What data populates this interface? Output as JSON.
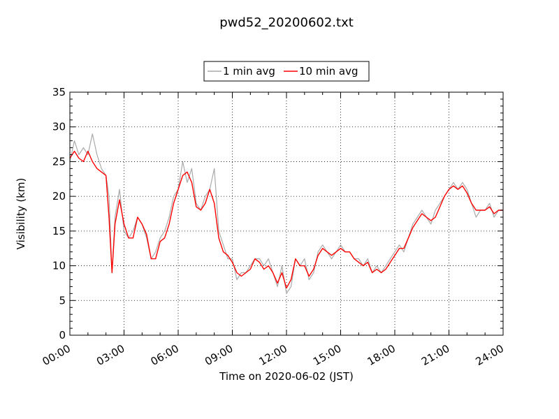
{
  "chart_data": {
    "type": "line",
    "title": "pwd52_20200602.txt",
    "xlabel": "Time on 2020-06-02 (JST)",
    "ylabel": "Visibility (km)",
    "xlim": [
      "00:00",
      "24:00"
    ],
    "ylim": [
      0,
      35
    ],
    "x_ticks": [
      "00:00",
      "03:00",
      "06:00",
      "09:00",
      "12:00",
      "15:00",
      "18:00",
      "21:00",
      "24:00"
    ],
    "y_ticks": [
      "0",
      "5",
      "10",
      "15",
      "20",
      "25",
      "30",
      "35"
    ],
    "grid": true,
    "legend_position": "top-center",
    "series": [
      {
        "name": "1 min avg",
        "color": "#aaaaaa",
        "x": [
          "00:00",
          "00:15",
          "00:30",
          "00:45",
          "01:00",
          "01:15",
          "01:30",
          "01:45",
          "02:00",
          "02:10",
          "02:20",
          "02:30",
          "02:45",
          "03:00",
          "03:15",
          "03:30",
          "03:45",
          "04:00",
          "04:15",
          "04:30",
          "04:45",
          "05:00",
          "05:15",
          "05:30",
          "05:45",
          "06:00",
          "06:15",
          "06:30",
          "06:45",
          "07:00",
          "07:15",
          "07:30",
          "07:45",
          "08:00",
          "08:15",
          "08:30",
          "08:45",
          "09:00",
          "09:15",
          "09:30",
          "09:45",
          "10:00",
          "10:15",
          "10:30",
          "10:45",
          "11:00",
          "11:15",
          "11:30",
          "11:45",
          "12:00",
          "12:15",
          "12:30",
          "12:45",
          "13:00",
          "13:15",
          "13:30",
          "13:45",
          "14:00",
          "14:15",
          "14:30",
          "14:45",
          "15:00",
          "15:15",
          "15:30",
          "15:45",
          "16:00",
          "16:15",
          "16:30",
          "16:45",
          "17:00",
          "17:15",
          "17:30",
          "17:45",
          "18:00",
          "18:15",
          "18:30",
          "18:45",
          "19:00",
          "19:15",
          "19:30",
          "19:45",
          "20:00",
          "20:15",
          "20:30",
          "20:45",
          "21:00",
          "21:15",
          "21:30",
          "21:45",
          "22:00",
          "22:15",
          "22:30",
          "22:45",
          "23:00",
          "23:15",
          "23:30",
          "23:45",
          "24:00"
        ],
        "values": [
          25,
          28,
          26,
          27,
          26,
          29,
          26,
          24,
          23,
          20,
          9,
          17,
          21,
          15,
          14,
          15,
          17,
          16,
          14,
          11,
          12,
          14,
          15,
          17,
          20,
          21,
          25,
          22,
          24,
          19,
          18,
          20,
          21,
          24,
          15,
          13,
          11,
          11,
          8,
          9,
          9,
          10,
          11,
          11,
          10,
          11,
          9,
          7,
          10,
          6,
          7,
          11,
          10,
          11,
          8,
          9,
          12,
          13,
          12,
          11,
          12,
          13,
          12,
          12,
          11,
          11,
          10,
          11,
          9,
          10,
          9,
          10,
          11,
          12,
          13,
          12,
          14,
          16,
          17,
          18,
          17,
          16,
          18,
          19,
          20,
          21,
          22,
          21,
          22,
          21,
          19,
          17,
          18,
          18,
          19,
          17,
          18,
          18
        ]
      },
      {
        "name": "10 min avg",
        "color": "#ff0000",
        "x": [
          "00:00",
          "00:15",
          "00:30",
          "00:45",
          "01:00",
          "01:15",
          "01:30",
          "01:45",
          "02:00",
          "02:10",
          "02:20",
          "02:30",
          "02:45",
          "03:00",
          "03:15",
          "03:30",
          "03:45",
          "04:00",
          "04:15",
          "04:30",
          "04:45",
          "05:00",
          "05:15",
          "05:30",
          "05:45",
          "06:00",
          "06:15",
          "06:30",
          "06:45",
          "07:00",
          "07:15",
          "07:30",
          "07:45",
          "08:00",
          "08:15",
          "08:30",
          "08:45",
          "09:00",
          "09:15",
          "09:30",
          "09:45",
          "10:00",
          "10:15",
          "10:30",
          "10:45",
          "11:00",
          "11:15",
          "11:30",
          "11:45",
          "12:00",
          "12:15",
          "12:30",
          "12:45",
          "13:00",
          "13:15",
          "13:30",
          "13:45",
          "14:00",
          "14:15",
          "14:30",
          "14:45",
          "15:00",
          "15:15",
          "15:30",
          "15:45",
          "16:00",
          "16:15",
          "16:30",
          "16:45",
          "17:00",
          "17:15",
          "17:30",
          "17:45",
          "18:00",
          "18:15",
          "18:30",
          "18:45",
          "19:00",
          "19:15",
          "19:30",
          "19:45",
          "20:00",
          "20:15",
          "20:30",
          "20:45",
          "21:00",
          "21:15",
          "21:30",
          "21:45",
          "22:00",
          "22:15",
          "22:30",
          "22:45",
          "23:00",
          "23:15",
          "23:30",
          "23:45",
          "24:00"
        ],
        "values": [
          25.5,
          26.5,
          25.5,
          25,
          26.5,
          25,
          24,
          23.5,
          23,
          17,
          9,
          16,
          19.5,
          16,
          14,
          14,
          17,
          16,
          14.5,
          11,
          11,
          13.5,
          14,
          16,
          19,
          21,
          23,
          23.5,
          22,
          18.5,
          18,
          19,
          21,
          19,
          14,
          12,
          11.5,
          10.5,
          9,
          8.5,
          9,
          9.5,
          11,
          10.5,
          9.5,
          10,
          9,
          7.5,
          9,
          6.8,
          8,
          11,
          10,
          10,
          8.5,
          9.5,
          11.5,
          12.5,
          12,
          11.5,
          12,
          12.5,
          12,
          12,
          11,
          10.5,
          10,
          10.5,
          9,
          9.5,
          9,
          9.5,
          10.5,
          11.5,
          12.5,
          12.5,
          14,
          15.5,
          16.5,
          17.5,
          17,
          16.5,
          17,
          18.5,
          20,
          21,
          21.5,
          21,
          21.5,
          20.5,
          19,
          18,
          18,
          18,
          18.5,
          17.5,
          18,
          18
        ]
      }
    ]
  }
}
